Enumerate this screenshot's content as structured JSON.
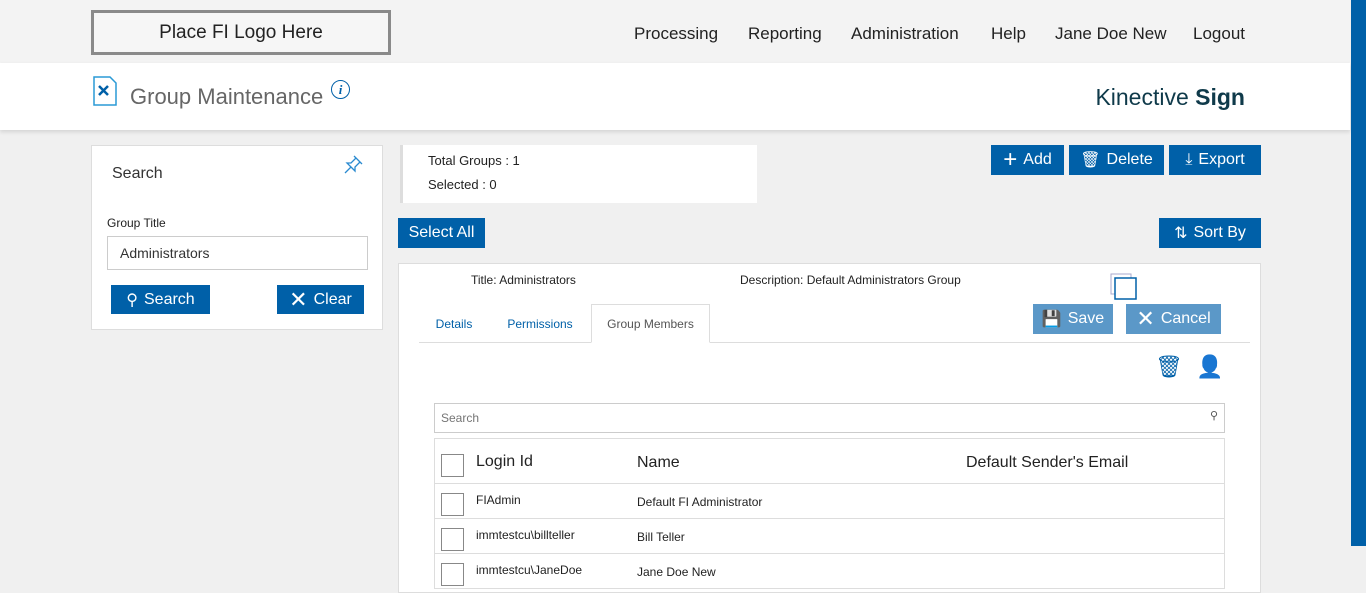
{
  "nav": {
    "logo": "Place FI Logo Here",
    "items": [
      "Processing",
      "Reporting",
      "Administration",
      "Help",
      "Jane Doe New",
      "Logout"
    ]
  },
  "header": {
    "title": "Group Maintenance",
    "brand_light": "Kinective ",
    "brand_bold": "Sign"
  },
  "search": {
    "heading": "Search",
    "field_label": "Group Title",
    "field_value": "Administrators",
    "search_label": "Search",
    "clear_label": "Clear"
  },
  "summary": {
    "total": "Total Groups : 1",
    "selected": "Selected : 0"
  },
  "toolbar": {
    "add": "Add",
    "delete": "Delete",
    "export": "Export",
    "select_all": "Select All",
    "sort_by": "Sort By"
  },
  "group": {
    "title_label": "Title:",
    "title": "Administrators",
    "desc_label": "Description:",
    "description": "Default Administrators Group",
    "save": "Save",
    "cancel": "Cancel",
    "tabs": [
      "Details",
      "Permissions",
      "Group Members"
    ],
    "active_tab": "Group Members"
  },
  "members": {
    "search_placeholder": "Search",
    "columns": [
      "Login Id",
      "Name",
      "Default Sender's Email"
    ],
    "rows": [
      {
        "login": "FIAdmin",
        "name": "Default FI Administrator",
        "email": ""
      },
      {
        "login": "immtestcu\\billteller",
        "name": "Bill Teller",
        "email": ""
      },
      {
        "login": "immtestcu\\JaneDoe",
        "name": "Jane Doe New",
        "email": ""
      }
    ]
  },
  "colors": {
    "primary": "#0060a8",
    "disabled": "#5b98c8"
  }
}
